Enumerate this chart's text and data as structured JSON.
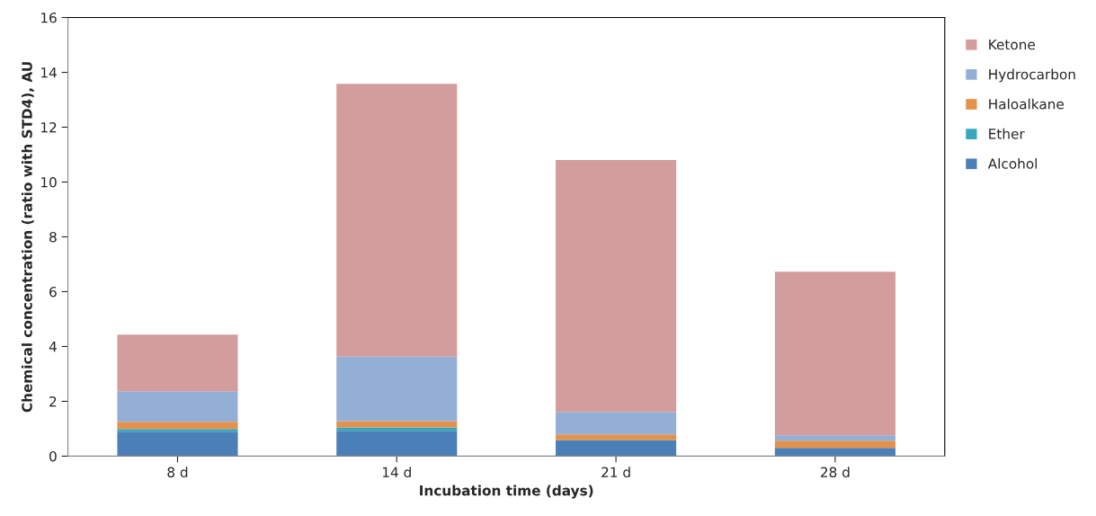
{
  "chart_data": {
    "type": "bar",
    "stacked": true,
    "xlabel": "Incubation time (days)",
    "ylabel": "Chemical concentration (ratio with STD4), AU",
    "categories": [
      "8 d",
      "14 d",
      "21 d",
      "28 d"
    ],
    "series": [
      {
        "name": "Alcohol",
        "color": "#4a7fb7",
        "values": [
          0.89,
          0.92,
          0.59,
          0.3
        ]
      },
      {
        "name": "Ether",
        "color": "#36a7bf",
        "values": [
          0.1,
          0.13,
          0,
          0
        ]
      },
      {
        "name": "Haloalkane",
        "color": "#e3914b",
        "values": [
          0.26,
          0.23,
          0.2,
          0.26
        ]
      },
      {
        "name": "Hydrocarbon",
        "color": "#93afd6",
        "values": [
          1.12,
          2.35,
          0.82,
          0.2
        ]
      },
      {
        "name": "Ketone",
        "color": "#d39c9d",
        "values": [
          2.06,
          9.95,
          9.19,
          5.97
        ]
      }
    ],
    "ylim": [
      0,
      16
    ],
    "yticks": [
      0,
      2,
      4,
      6,
      8,
      10,
      12,
      14,
      16
    ],
    "grid": false,
    "legend": "right"
  }
}
